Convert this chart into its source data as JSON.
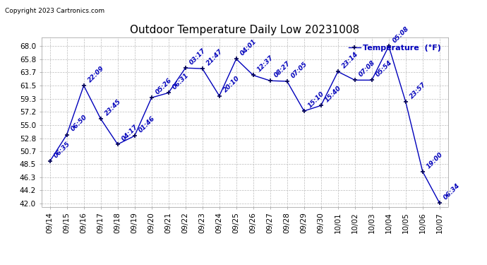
{
  "title": "Outdoor Temperature Daily Low 20231008",
  "copyright": "Copyright 2023 Cartronics.com",
  "legend_label": "Temperature  (°F)",
  "x_dates": [
    "09/14",
    "09/15",
    "09/16",
    "09/17",
    "09/18",
    "09/19",
    "09/20",
    "09/21",
    "09/22",
    "09/23",
    "09/24",
    "09/25",
    "09/26",
    "09/27",
    "09/28",
    "09/29",
    "09/30",
    "10/01",
    "10/02",
    "10/03",
    "10/04",
    "10/05",
    "10/06",
    "10/07"
  ],
  "y_values": [
    49.0,
    53.4,
    61.5,
    56.0,
    51.8,
    53.2,
    59.5,
    60.3,
    64.4,
    64.3,
    59.8,
    65.9,
    63.2,
    62.3,
    62.2,
    57.3,
    58.2,
    63.8,
    62.4,
    62.4,
    68.0,
    58.8,
    47.3,
    42.1
  ],
  "time_labels": [
    "06:35",
    "06:50",
    "22:09",
    "23:45",
    "04:17",
    "01:46",
    "05:26",
    "06:31",
    "03:17",
    "21:47",
    "20:10",
    "04:01",
    "12:37",
    "08:27",
    "07:05",
    "15:10",
    "15:40",
    "23:14",
    "07:08",
    "05:54",
    "05:08",
    "23:57",
    "19:00",
    "06:34"
  ],
  "y_ticks": [
    42.0,
    44.2,
    46.3,
    48.5,
    50.7,
    52.8,
    55.0,
    57.2,
    59.3,
    61.5,
    63.7,
    65.8,
    68.0
  ],
  "y_min": 41.5,
  "y_max": 69.5,
  "line_color": "#0000bb",
  "marker_color": "#000055",
  "label_color": "#0000bb",
  "bg_color": "#ffffff",
  "grid_color": "#bbbbbb",
  "title_fontsize": 11,
  "label_fontsize": 6.5,
  "tick_fontsize": 7.5,
  "legend_fontsize": 8,
  "copyright_fontsize": 6.5
}
